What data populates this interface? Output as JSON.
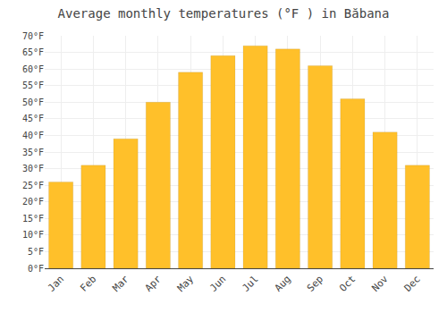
{
  "chart_data": {
    "type": "bar",
    "title": "Average monthly temperatures (°F ) in Băbana",
    "categories": [
      "Jan",
      "Feb",
      "Mar",
      "Apr",
      "May",
      "Jun",
      "Jul",
      "Aug",
      "Sep",
      "Oct",
      "Nov",
      "Dec"
    ],
    "values": [
      26,
      31,
      39,
      50,
      59,
      64,
      67,
      66,
      61,
      51,
      41,
      31
    ],
    "color": "#FFC02A",
    "ylim": [
      0,
      70
    ],
    "yticks": [
      {
        "value": 0,
        "label": "0°F"
      },
      {
        "value": 5,
        "label": "5°F"
      },
      {
        "value": 10,
        "label": "10°F"
      },
      {
        "value": 15,
        "label": "15°F"
      },
      {
        "value": 20,
        "label": "20°F"
      },
      {
        "value": 25,
        "label": "25°F"
      },
      {
        "value": 30,
        "label": "30°F"
      },
      {
        "value": 35,
        "label": "35°F"
      },
      {
        "value": 40,
        "label": "40°F"
      },
      {
        "value": 45,
        "label": "45°F"
      },
      {
        "value": 50,
        "label": "50°F"
      },
      {
        "value": 55,
        "label": "55°F"
      },
      {
        "value": 60,
        "label": "60°F"
      },
      {
        "value": 65,
        "label": "65°F"
      },
      {
        "value": 70,
        "label": "70°F"
      }
    ],
    "grid": true
  }
}
